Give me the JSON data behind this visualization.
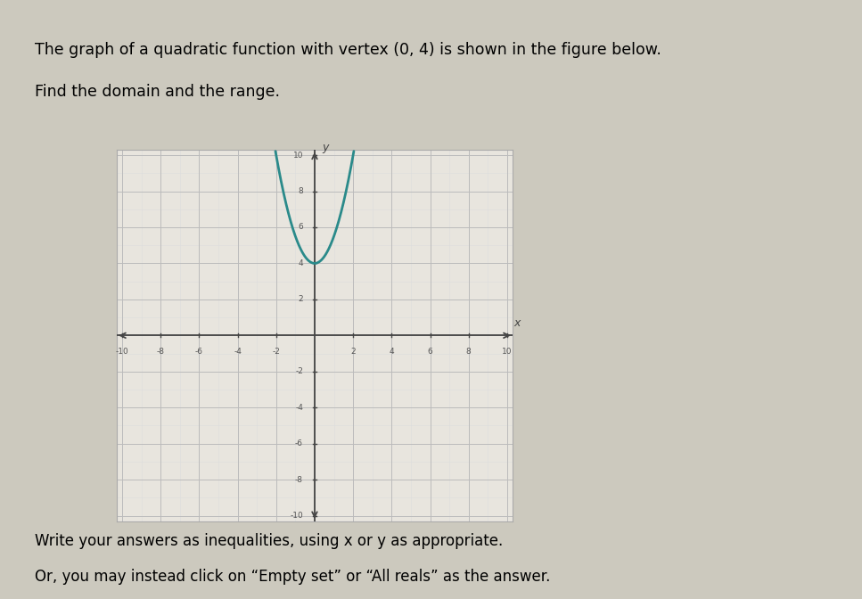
{
  "title_line1": "The graph of a quadratic function with vertex (0, 4) is shown in the figure below.",
  "title_line2": "Find the domain and the range.",
  "subtitle_line1": "Write your answers as inequalities, using x or y as appropriate.",
  "subtitle_line2": "Or, you may instead click on “Empty set” or “All reals” as the answer.",
  "vertex_x": 0,
  "vertex_y": 4,
  "parabola_a": 1.5,
  "x_range": [
    -10,
    10
  ],
  "y_range": [
    -10,
    10
  ],
  "x_ticks": [
    -10,
    -8,
    -6,
    -4,
    -2,
    2,
    4,
    6,
    8,
    10
  ],
  "y_ticks": [
    -10,
    -8,
    -6,
    -4,
    -2,
    2,
    4,
    6,
    8,
    10
  ],
  "grid_color": "#bbbbbb",
  "grid_minor_color": "#dddddd",
  "parabola_color": "#2a8a8a",
  "parabola_linewidth": 2.0,
  "axis_color": "#444444",
  "fig_bg_color": "#ccc9be",
  "plot_bg_color": "#e8e5de",
  "border_color": "#aaaaaa"
}
